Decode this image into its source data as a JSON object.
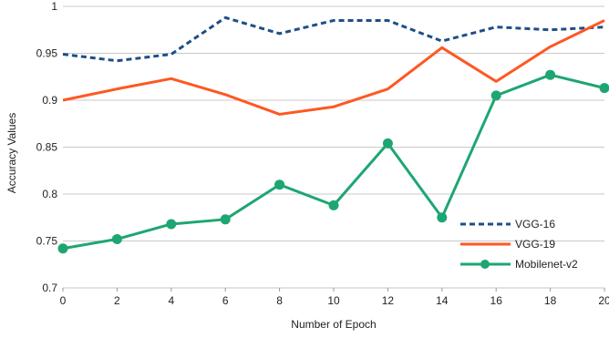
{
  "chart_data": {
    "type": "line",
    "xlabel": "Number of Epoch",
    "ylabel": "Accuracy Values",
    "x": [
      0,
      2,
      4,
      6,
      8,
      10,
      12,
      14,
      16,
      18,
      20
    ],
    "xticks": [
      "0",
      "2",
      "4",
      "6",
      "8",
      "10",
      "12",
      "14",
      "16",
      "18",
      "20"
    ],
    "yticks": [
      "0.7",
      "0.75",
      "0.8",
      "0.85",
      "0.9",
      "0.95",
      "1"
    ],
    "xlim": [
      0,
      20
    ],
    "ylim": [
      0.7,
      1.0
    ],
    "grid": "horizontal",
    "legend_position": "bottom-right",
    "series": [
      {
        "name": "VGG-16",
        "color": "#1f4e89",
        "style": "dashed",
        "values": [
          0.949,
          0.942,
          0.949,
          0.988,
          0.971,
          0.985,
          0.985,
          0.963,
          0.978,
          0.975,
          0.978
        ]
      },
      {
        "name": "VGG-19",
        "color": "#ff5722",
        "style": "solid",
        "values": [
          0.9,
          0.912,
          0.923,
          0.906,
          0.885,
          0.893,
          0.912,
          0.956,
          0.92,
          0.957,
          0.985
        ]
      },
      {
        "name": "Mobilenet-v2",
        "color": "#1ea672",
        "style": "solid-markers",
        "values": [
          0.742,
          0.752,
          0.768,
          0.773,
          0.81,
          0.788,
          0.854,
          0.775,
          0.905,
          0.927,
          0.913
        ]
      }
    ]
  }
}
